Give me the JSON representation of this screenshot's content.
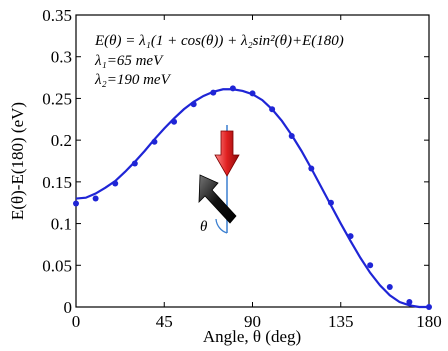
{
  "chart_data": {
    "type": "line",
    "title": "",
    "xlabel": "Angle, θ (deg)",
    "ylabel": "E(θ)-E(180) (eV)",
    "xlim": [
      0,
      180
    ],
    "ylim": [
      0,
      0.35
    ],
    "x_ticks": [
      0,
      45,
      90,
      135,
      180
    ],
    "x_tick_labels": [
      "0",
      "45",
      "90",
      "135",
      "180"
    ],
    "y_ticks": [
      0,
      0.05,
      0.1,
      0.15,
      0.2,
      0.25,
      0.3,
      0.35
    ],
    "y_tick_labels": [
      "0",
      "0.05",
      "0.1",
      "0.15",
      "0.2",
      "0.25",
      "0.3",
      "0.35"
    ],
    "grid": false,
    "legend": "none",
    "series": [
      {
        "kind": "scatter",
        "color": "#1f25d6",
        "x": [
          0,
          10,
          20,
          30,
          40,
          50,
          60,
          70,
          80,
          90,
          100,
          110,
          120,
          130,
          140,
          150,
          160,
          170,
          180
        ],
        "values": [
          0.124,
          0.13,
          0.148,
          0.172,
          0.198,
          0.222,
          0.243,
          0.257,
          0.262,
          0.256,
          0.237,
          0.205,
          0.166,
          0.125,
          0.085,
          0.05,
          0.024,
          0.006,
          0.0
        ]
      },
      {
        "kind": "line",
        "color": "#1f25d6",
        "x": [
          0,
          5,
          10,
          15,
          20,
          25,
          30,
          35,
          40,
          45,
          50,
          55,
          60,
          65,
          70,
          75,
          80,
          85,
          90,
          95,
          100,
          105,
          110,
          115,
          120,
          125,
          130,
          135,
          140,
          145,
          150,
          155,
          160,
          165,
          170,
          175,
          180
        ],
        "values": [
          0.13,
          0.131,
          0.136,
          0.143,
          0.151,
          0.162,
          0.174,
          0.187,
          0.201,
          0.214,
          0.226,
          0.237,
          0.246,
          0.253,
          0.258,
          0.261,
          0.261,
          0.259,
          0.255,
          0.248,
          0.237,
          0.223,
          0.206,
          0.187,
          0.166,
          0.144,
          0.122,
          0.1,
          0.079,
          0.059,
          0.041,
          0.026,
          0.014,
          0.006,
          0.002,
          0.0,
          0.0
        ]
      }
    ],
    "annotations": {
      "formula": "E(θ) = λ₁(1 + cos(θ)) + λ₂sin²(θ)+E(180)",
      "lambda1": "λ₁=65 meV",
      "lambda2": "λ₂=190 meV",
      "theta_label": "θ"
    },
    "inset_colors": {
      "red_arrow": "#e02020",
      "black_arrow": "#111111",
      "spin_axis": "#3b7fd0"
    }
  }
}
